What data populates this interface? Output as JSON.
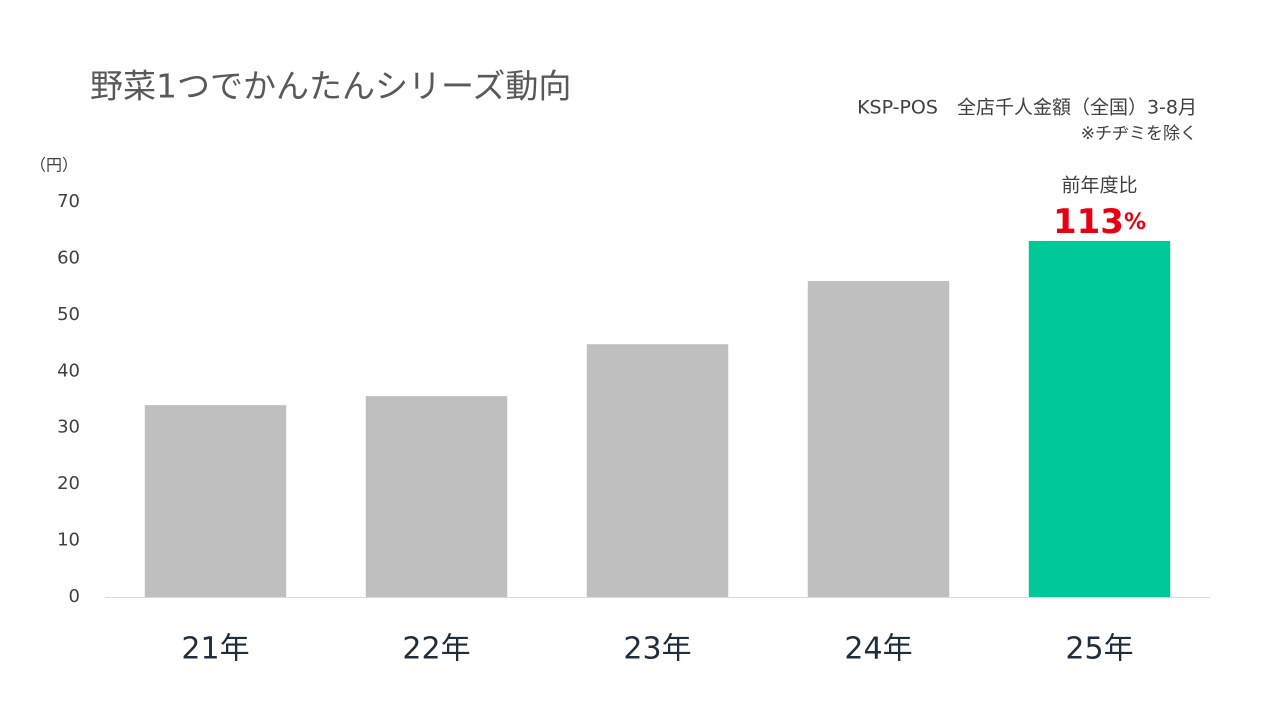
{
  "chart_data": {
    "type": "bar",
    "title": "野菜1つでかんたんシリーズ動向",
    "subtitle": "KSP-POS　全店千人金額（全国）3-8月",
    "note": "※チヂミを除く",
    "y_label": "（円）",
    "categories": [
      "21年",
      "22年",
      "23年",
      "24年",
      "25年"
    ],
    "values": [
      34,
      35.6,
      44.8,
      56,
      63.1
    ],
    "colors": [
      "#bfbfbf",
      "#bfbfbf",
      "#bfbfbf",
      "#bfbfbf",
      "#00c896"
    ],
    "ylim": [
      0,
      70
    ],
    "yticks": [
      0,
      10,
      20,
      30,
      40,
      50,
      60,
      70
    ],
    "grid": false,
    "annotation": {
      "label": "前年度比",
      "number": "113",
      "unit": "%",
      "color": "#e60012"
    }
  }
}
